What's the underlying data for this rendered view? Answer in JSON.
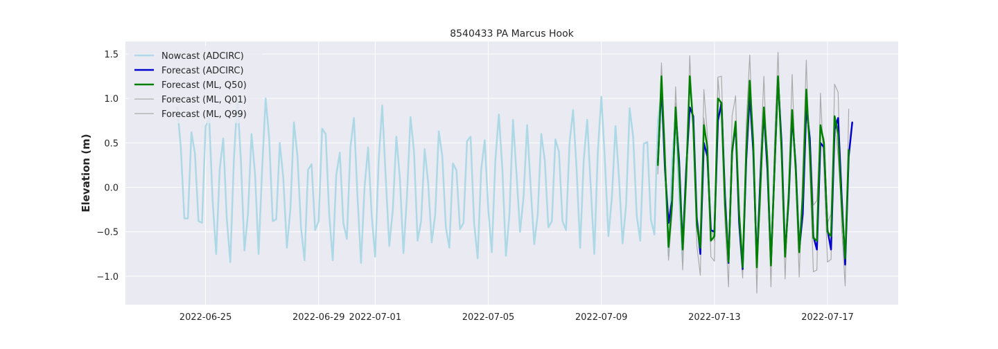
{
  "chart_data": {
    "type": "line",
    "title": "8540433 PA Marcus Hook",
    "xlabel": "",
    "ylabel": "Elevation (m)",
    "x_type": "date",
    "xlim": [
      "2022-06-22T04:00",
      "2022-07-19T12:00"
    ],
    "ylim": [
      -1.32,
      1.64
    ],
    "x_ticks": [
      "2022-06-25",
      "2022-06-29",
      "2022-07-01",
      "2022-07-05",
      "2022-07-09",
      "2022-07-13",
      "2022-07-17"
    ],
    "y_ticks": [
      -1.0,
      -0.5,
      0.0,
      0.5,
      1.0,
      1.5
    ],
    "y_tick_labels": [
      "−1.0",
      "−0.5",
      "0.0",
      "0.5",
      "1.0",
      "1.5"
    ],
    "grid": true,
    "legend_position": "top-left",
    "series": [
      {
        "name": "Nowcast (ADCIRC)",
        "color": "#add8e6",
        "line_width": 2.5,
        "start": "2022-06-24T00:00",
        "step_hours": 3,
        "values": [
          0.9,
          0.45,
          -0.35,
          -0.35,
          0.62,
          0.38,
          -0.38,
          -0.4,
          0.68,
          0.8,
          -0.15,
          -0.75,
          0.2,
          0.55,
          -0.35,
          -0.84,
          0.3,
          1.0,
          0.3,
          -0.71,
          -0.3,
          0.6,
          0.15,
          -0.75,
          0.2,
          1.0,
          0.55,
          -0.38,
          -0.36,
          0.5,
          0.1,
          -0.68,
          -0.25,
          0.73,
          0.35,
          -0.45,
          -0.82,
          0.2,
          0.26,
          -0.48,
          -0.38,
          0.66,
          0.6,
          -0.3,
          -0.82,
          0.14,
          0.39,
          -0.4,
          -0.58,
          0.45,
          0.78,
          -0.1,
          -0.85,
          0.0,
          0.45,
          -0.3,
          -0.78,
          0.3,
          0.92,
          0.1,
          -0.66,
          -0.25,
          0.57,
          0.1,
          -0.74,
          -0.1,
          0.79,
          0.4,
          -0.6,
          -0.38,
          0.43,
          0.05,
          -0.62,
          -0.3,
          0.63,
          0.35,
          -0.45,
          -0.68,
          0.27,
          0.19,
          -0.47,
          -0.4,
          0.52,
          0.57,
          -0.4,
          -0.8,
          0.2,
          0.53,
          -0.25,
          -0.73,
          0.3,
          0.82,
          0.2,
          -0.77,
          -0.3,
          0.76,
          0.15,
          -0.5,
          -0.1,
          0.7,
          0.0,
          -0.64,
          -0.3,
          0.6,
          0.3,
          -0.45,
          -0.38,
          0.54,
          0.4,
          -0.38,
          -0.48,
          0.5,
          0.87,
          0.2,
          -0.68,
          0.3,
          0.76,
          0.0,
          -0.75,
          0.4,
          1.02,
          0.3,
          -0.55,
          -0.1,
          0.69,
          0.1,
          -0.63,
          -0.2,
          0.89,
          0.57,
          -0.32,
          -0.6,
          0.49,
          0.51,
          -0.36,
          -0.53,
          0.75,
          1.05,
          0.3,
          -0.77,
          0.3,
          0.79,
          -0.1,
          -0.84
        ]
      },
      {
        "name": "Forecast (ADCIRC)",
        "color": "#0000cd",
        "line_width": 2.5,
        "start": "2022-07-11T00:00",
        "step_hours": 3,
        "values": [
          0.28,
          1.15,
          0.2,
          -0.4,
          -0.15,
          0.85,
          0.3,
          -0.68,
          0.2,
          0.9,
          0.8,
          -0.35,
          -0.75,
          0.5,
          0.35,
          -0.48,
          -0.5,
          0.75,
          0.95,
          -0.1,
          -0.85,
          0.4,
          0.7,
          -0.4,
          -0.92,
          0.3,
          1.05,
          0.4,
          -0.85,
          0.1,
          0.85,
          0.2,
          -0.85,
          0.2,
          1.22,
          0.5,
          -0.75,
          -0.15,
          0.8,
          0.25,
          -0.7,
          -0.3,
          0.9,
          0.55,
          -0.55,
          -0.7,
          0.5,
          0.45,
          -0.48,
          -0.7,
          0.65,
          0.78,
          -0.1,
          -0.87,
          0.35,
          0.73
        ]
      },
      {
        "name": "Forecast (ML, Q50)",
        "color": "#008000",
        "line_width": 2.5,
        "start": "2022-07-11T00:00",
        "step_hours": 3,
        "values": [
          0.25,
          1.25,
          0.3,
          -0.67,
          -0.2,
          0.9,
          0.2,
          -0.7,
          0.1,
          1.25,
          0.7,
          -0.42,
          -0.68,
          0.7,
          0.45,
          -0.6,
          -0.55,
          1.0,
          0.95,
          -0.2,
          -0.84,
          0.4,
          0.74,
          -0.3,
          -0.9,
          0.4,
          1.2,
          0.5,
          -0.9,
          0.0,
          0.9,
          0.3,
          -0.88,
          0.2,
          1.25,
          0.4,
          -0.78,
          -0.1,
          0.87,
          0.2,
          -0.73,
          -0.1,
          1.1,
          0.4,
          -0.57,
          -0.6,
          0.7,
          0.5,
          -0.5,
          -0.55,
          0.8,
          0.6,
          -0.2,
          -0.8,
          0.42
        ]
      },
      {
        "name": "Forecast (ML, Q01)",
        "color": "#aaaaaa",
        "line_width": 1.2,
        "start": "2022-07-11T00:00",
        "step_hours": 3,
        "values": [
          0.15,
          1.4,
          0.5,
          -0.82,
          -0.3,
          1.13,
          0.25,
          -0.93,
          0.0,
          1.48,
          0.6,
          -0.65,
          -0.99,
          1.1,
          0.6,
          -0.78,
          -0.83,
          1.23,
          0.75,
          -0.4,
          -1.12,
          0.8,
          1.03,
          -0.5,
          -1.02,
          0.7,
          1.49,
          0.4,
          -1.19,
          0.3,
          1.25,
          0.15,
          -1.12,
          0.5,
          1.52,
          0.35,
          -1.03,
          0.0,
          1.27,
          0.1,
          -1.01,
          0.2,
          1.43,
          0.2,
          -0.95,
          -0.93,
          1.06,
          0.2,
          -0.84,
          -0.81,
          1.16,
          1.07,
          -0.45,
          -1.11,
          0.88
        ]
      },
      {
        "name": "Forecast (ML, Q99)",
        "color": "#aaaaaa",
        "line_width": 1.2,
        "start": "2022-07-11T00:00",
        "step_hours": 3,
        "values": [
          0.2,
          1.1,
          0.4,
          -0.65,
          -0.15,
          0.95,
          0.3,
          -0.7,
          0.05,
          1.22,
          0.75,
          -0.3,
          -0.6,
          0.78,
          0.45,
          -0.45,
          -0.6,
          1.24,
          1.25,
          -0.1,
          -0.75,
          0.3,
          0.73,
          -0.2,
          -0.85,
          0.2,
          1.12,
          0.55,
          -0.82,
          -0.2,
          0.9,
          0.4,
          -0.85,
          0.1,
          1.2,
          0.5,
          -0.7,
          -0.2,
          0.85,
          0.3,
          -0.7,
          -0.2,
          1.05,
          0.6,
          -0.2,
          -0.15,
          0.65,
          0.55,
          -0.4,
          -0.3,
          0.75,
          0.35,
          -0.25,
          -0.75,
          0.4
        ]
      }
    ]
  }
}
